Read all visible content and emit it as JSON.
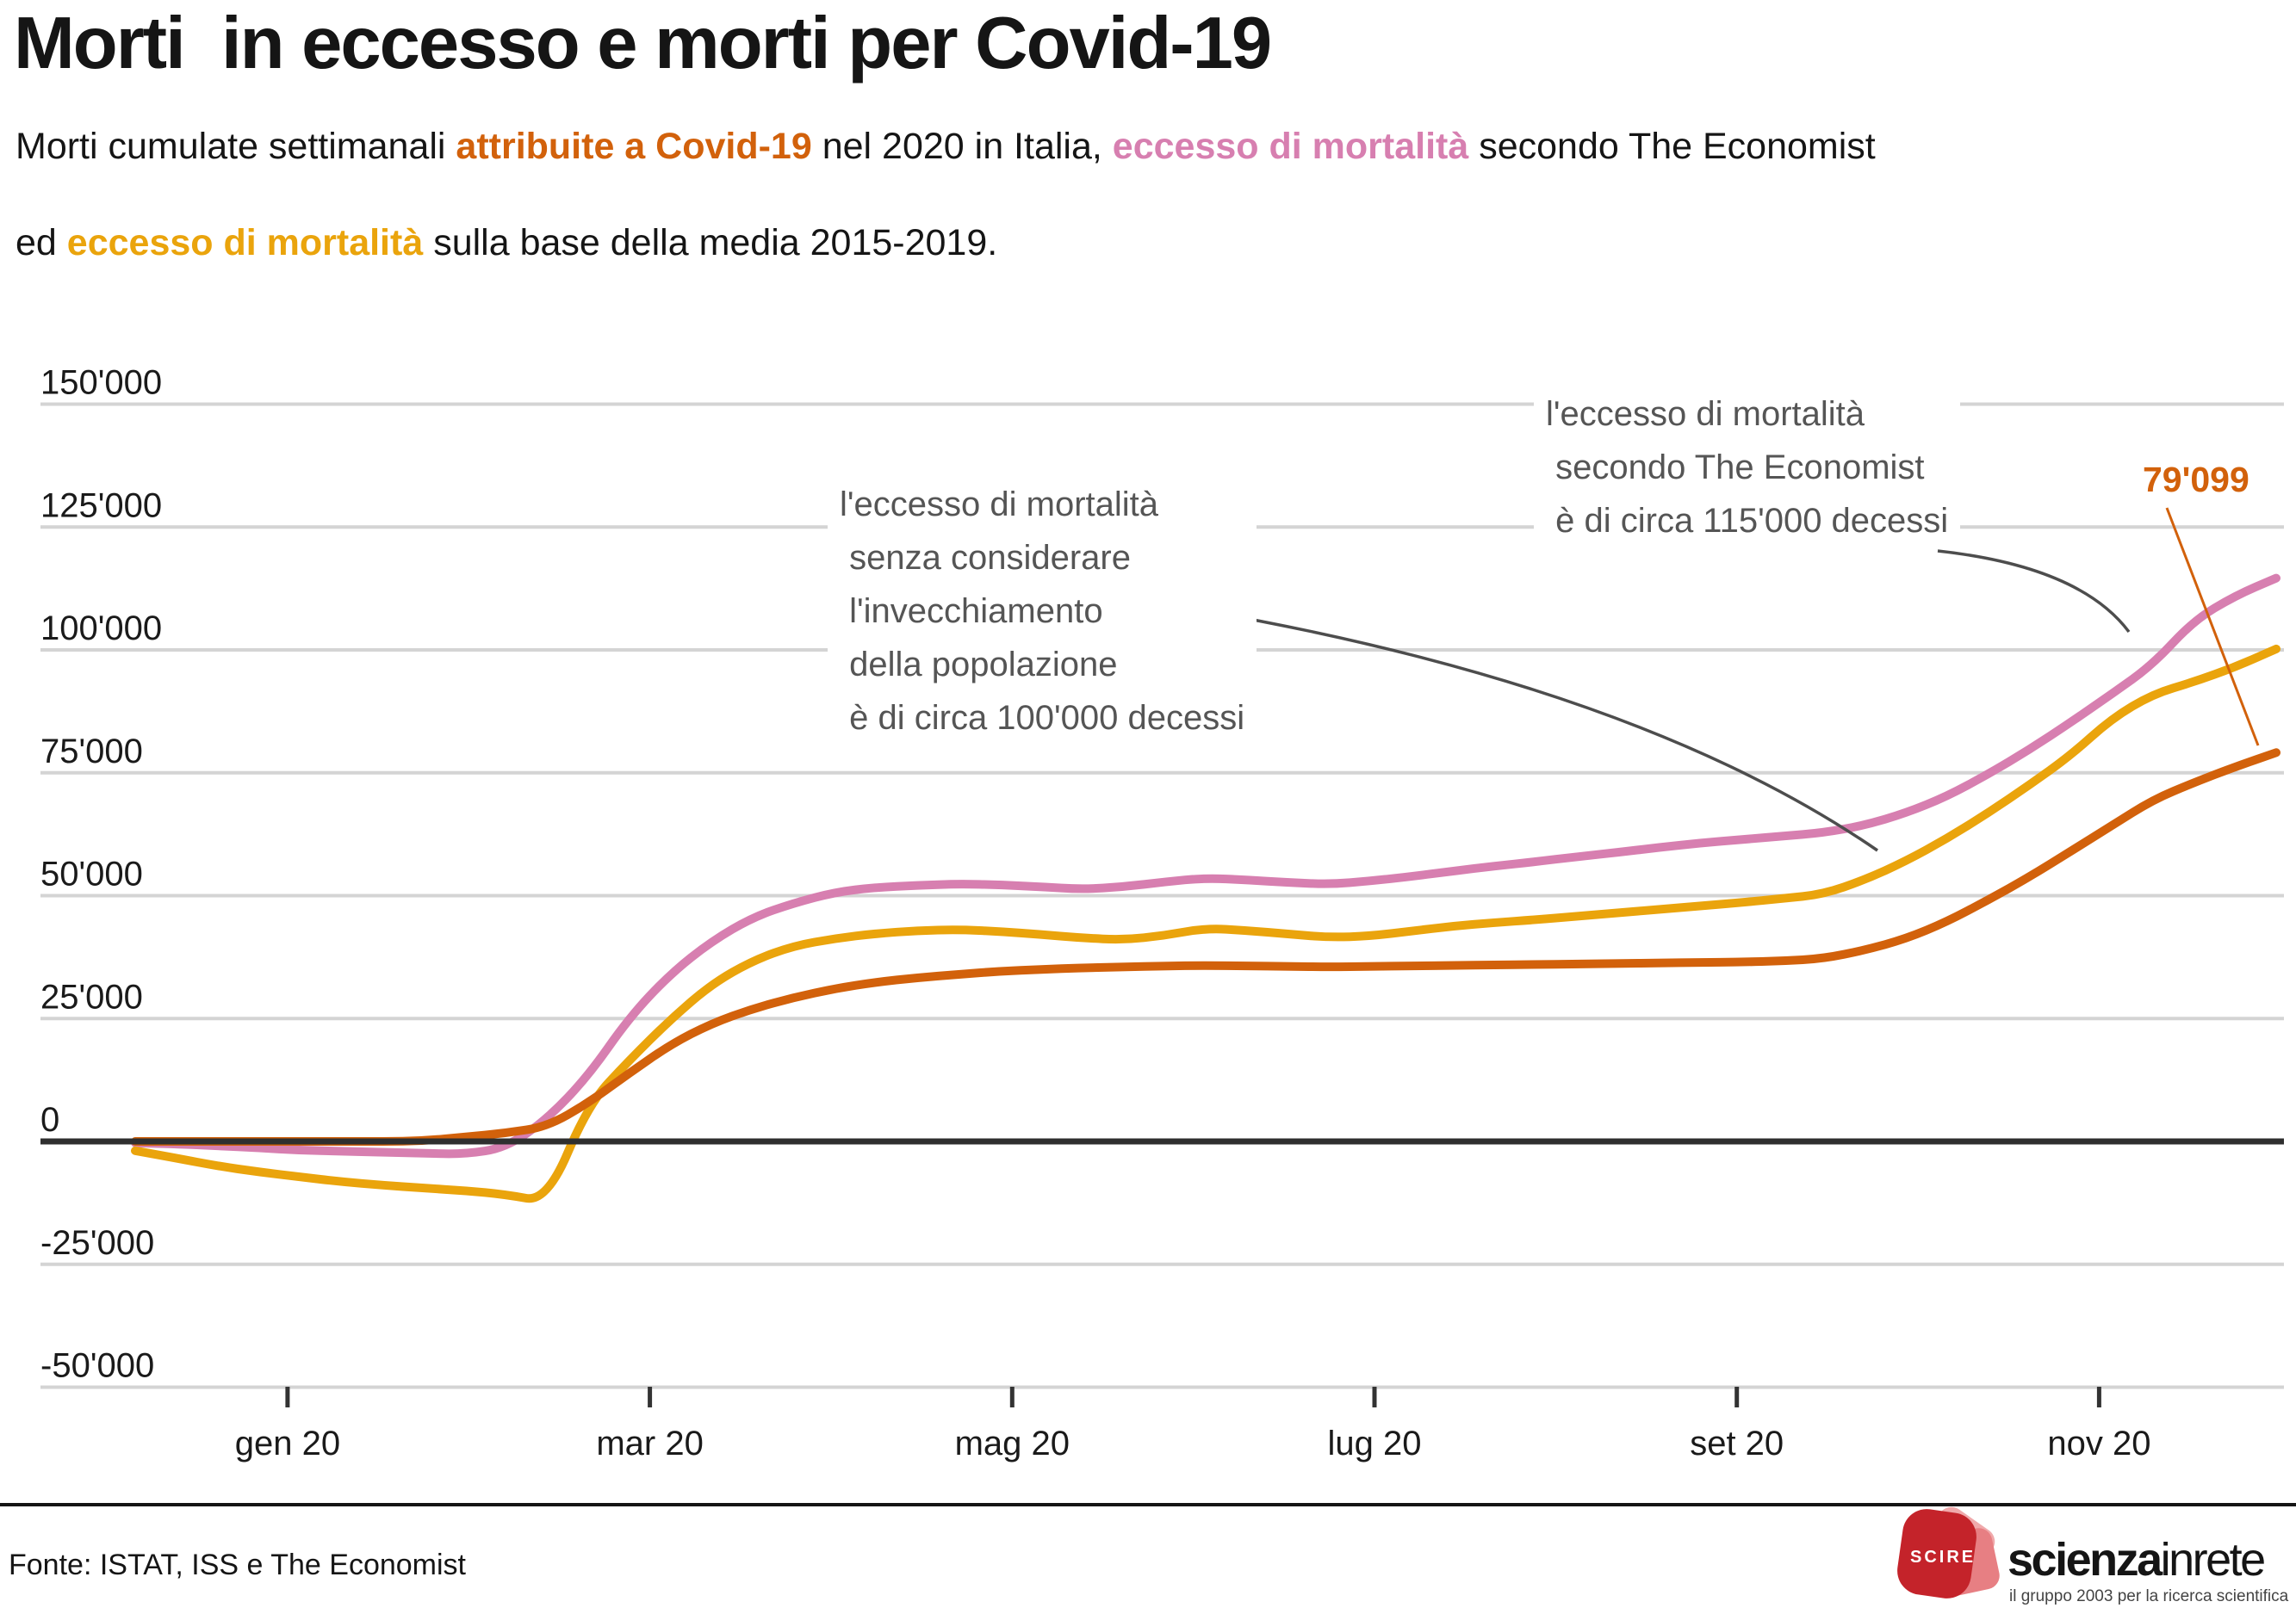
{
  "header": {
    "title": "Morti  in eccesso e morti per Covid-19",
    "subtitle_line1": {
      "seg1": "Morti cumulate settimanali ",
      "seg2_covid": "attribuite a Covid-19",
      "seg3": " nel 2020 in Italia, ",
      "seg4_economist": "eccesso di mortalità",
      "seg5": " secondo The Economist"
    },
    "subtitle_line2": {
      "seg1": "ed ",
      "seg2_media": "eccesso di mortalità",
      "seg3": " sulla base della media 2015-2019."
    }
  },
  "colors": {
    "covid_orange": "#d2610b",
    "economist_pink": "#d77fb0",
    "media_yellow": "#eaa40c",
    "annotation_gray": "#555555",
    "gridline_gray": "#d4d4d4",
    "zero_line": "#2f2f2f",
    "logo_red": "#c4232a",
    "logo_petal_light": "#f0a9ab",
    "logo_petal_mid": "#e77f83"
  },
  "annotations": {
    "excess_no_aging": {
      "text": "l'eccesso di mortalità\n senza considerare\n l'invecchiamento\n della popolazione\n è di circa 100'000 decessi"
    },
    "excess_economist": {
      "text": "l'eccesso di mortalità\n secondo The Economist\n è di circa 115'000 decessi"
    },
    "end_value_label": "79'099"
  },
  "footer": {
    "source": "Fonte: ISTAT, ISS e The Economist",
    "logo_badge": "SCIRE",
    "logo_word_bold": "scienza",
    "logo_word_light": "inrete",
    "logo_tagline": "il gruppo 2003 per la ricerca scientifica"
  },
  "chart_data": {
    "type": "line",
    "title": "Morti in eccesso e morti per Covid-19",
    "xlabel": "",
    "ylabel": "",
    "grid": true,
    "legend_position": "none",
    "ylim": [
      -50000,
      150000
    ],
    "y_ticks": [
      {
        "value": 150000,
        "label": "150'000"
      },
      {
        "value": 125000,
        "label": "125'000"
      },
      {
        "value": 100000,
        "label": "100'000"
      },
      {
        "value": 75000,
        "label": "75'000"
      },
      {
        "value": 50000,
        "label": "50'000"
      },
      {
        "value": 25000,
        "label": "25'000"
      },
      {
        "value": 0,
        "label": "0"
      },
      {
        "value": -25000,
        "label": "-25'000"
      },
      {
        "value": -50000,
        "label": "-50'000"
      }
    ],
    "x_ticks": [
      {
        "label": "gen 20",
        "week_index": 3.7
      },
      {
        "label": "mar 20",
        "week_index": 12.5
      },
      {
        "label": "mag 20",
        "week_index": 21.3
      },
      {
        "label": "lug 20",
        "week_index": 30.1
      },
      {
        "label": "set 20",
        "week_index": 38.9
      },
      {
        "label": "nov 20",
        "week_index": 47.7
      }
    ],
    "x": [
      "2020-01-04",
      "2020-01-11",
      "2020-01-18",
      "2020-01-25",
      "2020-02-01",
      "2020-02-08",
      "2020-02-15",
      "2020-02-22",
      "2020-02-29",
      "2020-03-07",
      "2020-03-14",
      "2020-03-21",
      "2020-03-28",
      "2020-04-04",
      "2020-04-11",
      "2020-04-18",
      "2020-04-25",
      "2020-05-02",
      "2020-05-09",
      "2020-05-16",
      "2020-05-23",
      "2020-05-30",
      "2020-06-06",
      "2020-06-13",
      "2020-06-20",
      "2020-06-27",
      "2020-07-04",
      "2020-07-11",
      "2020-07-18",
      "2020-07-25",
      "2020-08-01",
      "2020-08-08",
      "2020-08-15",
      "2020-08-22",
      "2020-08-29",
      "2020-09-05",
      "2020-09-12",
      "2020-09-19",
      "2020-09-26",
      "2020-10-03",
      "2020-10-10",
      "2020-10-17",
      "2020-10-24",
      "2020-10-31",
      "2020-11-07",
      "2020-11-14",
      "2020-11-21",
      "2020-11-28",
      "2020-12-05",
      "2020-12-12",
      "2020-12-19",
      "2020-12-26",
      "2021-01-02"
    ],
    "series": [
      {
        "name": "eccesso di mortalità secondo The Economist",
        "key": "economist",
        "color": "#d77fb0",
        "end_value": 114600,
        "values": [
          -300,
          -500,
          -900,
          -1300,
          -1800,
          -2000,
          -2200,
          -2400,
          -2600,
          -1300,
          4500,
          13300,
          25200,
          34100,
          40700,
          45600,
          48500,
          50700,
          51700,
          52100,
          52400,
          52200,
          51800,
          51300,
          51800,
          52800,
          53600,
          53200,
          52700,
          52300,
          53000,
          53900,
          55000,
          56000,
          56900,
          57900,
          58800,
          59800,
          60700,
          61400,
          62100,
          62800,
          64300,
          66800,
          70200,
          74700,
          79700,
          85200,
          91000,
          97000,
          106000,
          111000,
          114600
        ]
      },
      {
        "name": "eccesso di mortalità sulla base della media 2015-2019",
        "key": "media",
        "color": "#eaa40c",
        "end_value": 100200,
        "values": [
          -1900,
          -3400,
          -5000,
          -6200,
          -7200,
          -8200,
          -8900,
          -9500,
          -10000,
          -10800,
          -12300,
          7500,
          16500,
          24800,
          32000,
          36800,
          39800,
          41300,
          42300,
          42900,
          43100,
          42700,
          42100,
          41400,
          41000,
          41900,
          43400,
          42900,
          42200,
          41500,
          41800,
          42800,
          43800,
          44500,
          45100,
          45800,
          46500,
          47200,
          47900,
          48600,
          49400,
          50300,
          53200,
          57000,
          61600,
          66800,
          72500,
          78500,
          86000,
          91000,
          93500,
          96500,
          100200
        ]
      },
      {
        "name": "morti attribuite a Covid-19",
        "key": "covid",
        "color": "#d2610b",
        "end_value": 79099,
        "values": [
          0,
          0,
          0,
          0,
          0,
          0,
          0,
          100,
          900,
          1700,
          3000,
          7800,
          13900,
          19700,
          24000,
          27000,
          29300,
          31100,
          32400,
          33300,
          34000,
          34600,
          35000,
          35300,
          35500,
          35700,
          35800,
          35700,
          35600,
          35500,
          35600,
          35700,
          35800,
          35900,
          36000,
          36100,
          36200,
          36300,
          36400,
          36500,
          36700,
          37200,
          38900,
          41200,
          44700,
          49100,
          53800,
          59000,
          64200,
          69500,
          73000,
          76200,
          79099
        ]
      }
    ]
  }
}
